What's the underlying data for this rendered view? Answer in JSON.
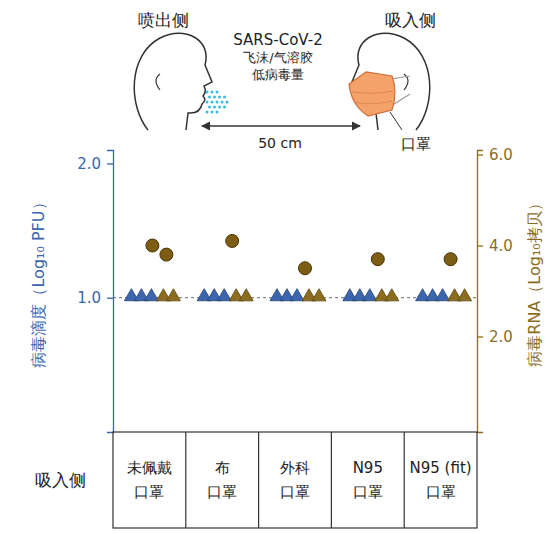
{
  "illustration": {
    "emitter_label": "喷出侧",
    "receiver_label": "吸入侧",
    "virus": "SARS-CoV-2",
    "particles": "飞沫/气溶胶",
    "virus_load": "低病毒量",
    "distance": "50 cm",
    "mask_label": "口罩"
  },
  "chart_data": {
    "type": "scatter",
    "xlabel": "吸入侧",
    "categories": [
      "未佩戴\n口罩",
      "布\n口罩",
      "外科\n口罩",
      "N95\n口罩",
      "N95 (fit)\n口罩"
    ],
    "ylabel": "病毒滴度（Log₁₀ PFU）",
    "y2label": "病毒RNA（Log₁₀拷贝）",
    "ylim": [
      0,
      2.1
    ],
    "yticks": [
      {
        "value": 1,
        "label": "1.0"
      },
      {
        "value": 2,
        "label": "2.0"
      }
    ],
    "y2lim": [
      -0.1,
      6.1
    ],
    "y2ticks": [
      {
        "value": 2,
        "label": "2.0"
      },
      {
        "value": 4,
        "label": "4.0"
      },
      {
        "value": 6,
        "label": "6.0"
      }
    ],
    "detection_limit": 1.0,
    "series": [
      {
        "color": "#3b66ae",
        "marker": "triangle",
        "axis": "y",
        "values": [
          [
            1.0,
            1.0,
            1.0
          ],
          [
            1.0,
            1.0,
            1.0
          ],
          [
            1.0,
            1.0,
            1.0
          ],
          [
            1.0,
            1.0,
            1.0
          ],
          [
            1.0,
            1.0,
            1.0
          ]
        ]
      },
      {
        "color": "#8c6d1f",
        "marker": "triangle",
        "axis": "y2",
        "values": [
          [
            2.85,
            2.85
          ],
          [
            2.85,
            2.85
          ],
          [
            2.85,
            2.85
          ],
          [
            2.85,
            2.85
          ],
          [
            2.85,
            2.85
          ]
        ]
      },
      {
        "color": "#7d5c14",
        "marker": "circle",
        "axis": "y2",
        "values": [
          [
            4.0,
            3.8
          ],
          [
            4.1
          ],
          [
            3.5
          ],
          [
            3.7
          ],
          [
            3.7
          ]
        ]
      }
    ]
  }
}
